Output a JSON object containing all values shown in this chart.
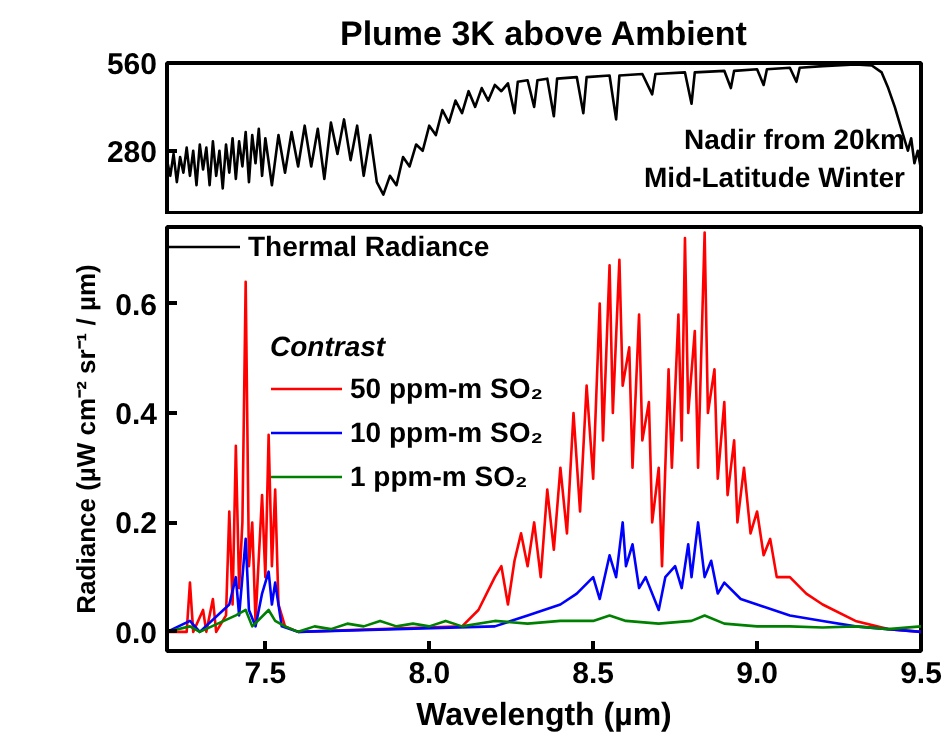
{
  "chart_data": [
    {
      "type": "line",
      "title": "Plume 3K above Ambient",
      "annotations": [
        "Nadir from 20km",
        "Mid-Latitude Winter"
      ],
      "xlim": [
        7.2,
        9.5
      ],
      "ylim": [
        75,
        560
      ],
      "yticks": [
        280,
        560
      ],
      "tick_labels": "y",
      "grid": false,
      "legend": "bottom left",
      "marker": "none",
      "line_style": "solid",
      "series": [
        {
          "name": "Thermal Radiance",
          "color": "#000000",
          "x": [
            7.2,
            7.21,
            7.22,
            7.23,
            7.24,
            7.25,
            7.26,
            7.27,
            7.28,
            7.29,
            7.3,
            7.31,
            7.32,
            7.33,
            7.34,
            7.35,
            7.36,
            7.37,
            7.38,
            7.39,
            7.4,
            7.41,
            7.42,
            7.43,
            7.44,
            7.45,
            7.46,
            7.47,
            7.48,
            7.49,
            7.5,
            7.52,
            7.54,
            7.56,
            7.58,
            7.6,
            7.62,
            7.64,
            7.66,
            7.68,
            7.7,
            7.72,
            7.74,
            7.76,
            7.78,
            7.8,
            7.82,
            7.84,
            7.86,
            7.88,
            7.9,
            7.92,
            7.94,
            7.96,
            7.98,
            8.0,
            8.02,
            8.04,
            8.06,
            8.08,
            8.1,
            8.12,
            8.14,
            8.16,
            8.18,
            8.2,
            8.22,
            8.24,
            8.26,
            8.27,
            8.3,
            8.32,
            8.33,
            8.36,
            8.38,
            8.39,
            8.45,
            8.47,
            8.48,
            8.55,
            8.57,
            8.58,
            8.65,
            8.68,
            8.69,
            8.78,
            8.8,
            8.81,
            8.9,
            8.92,
            8.93,
            9.0,
            9.02,
            9.03,
            9.1,
            9.12,
            9.13,
            9.2,
            9.3,
            9.35,
            9.38,
            9.4,
            9.42,
            9.44,
            9.46,
            9.47,
            9.48,
            9.49,
            9.5
          ],
          "values": [
            250,
            200,
            270,
            180,
            260,
            210,
            290,
            200,
            280,
            170,
            300,
            220,
            290,
            170,
            310,
            200,
            280,
            160,
            300,
            210,
            320,
            190,
            310,
            230,
            340,
            180,
            330,
            240,
            350,
            200,
            320,
            170,
            330,
            210,
            340,
            230,
            360,
            230,
            350,
            190,
            370,
            270,
            380,
            250,
            360,
            200,
            330,
            180,
            140,
            200,
            170,
            260,
            230,
            300,
            280,
            360,
            330,
            410,
            370,
            440,
            400,
            470,
            420,
            480,
            440,
            490,
            470,
            495,
            400,
            500,
            505,
            420,
            505,
            510,
            390,
            510,
            515,
            400,
            515,
            520,
            380,
            520,
            525,
            460,
            525,
            530,
            430,
            530,
            535,
            480,
            535,
            540,
            490,
            540,
            545,
            500,
            545,
            550,
            555,
            552,
            530,
            480,
            420,
            350,
            280,
            320,
            240,
            280,
            220
          ]
        }
      ]
    },
    {
      "type": "line",
      "xlabel": "Wavelength (µm)",
      "ylabel": "Radiance (µW cm⁻² sr⁻¹ / µm)",
      "legend_title": "Contrast",
      "xlim": [
        7.2,
        9.5
      ],
      "xticks": [
        7.5,
        {
          "value": 8,
          "label": "8.0"
        },
        8.5,
        {
          "value": 9,
          "label": "9.0"
        },
        9.5
      ],
      "ylim": [
        -0.035,
        0.74
      ],
      "yticks": [
        {
          "value": 0,
          "label": "0.0"
        },
        0.2,
        0.4,
        0.6
      ],
      "grid": false,
      "legend": "top left",
      "marker": "none",
      "line_style": "solid",
      "series": [
        {
          "name": "50 ppm-m SO₂",
          "color": "#ff0000",
          "x": [
            7.2,
            7.26,
            7.27,
            7.28,
            7.31,
            7.32,
            7.34,
            7.35,
            7.38,
            7.39,
            7.4,
            7.41,
            7.42,
            7.43,
            7.44,
            7.45,
            7.46,
            7.47,
            7.49,
            7.5,
            7.51,
            7.52,
            7.53,
            7.54,
            7.56,
            7.6,
            8.1,
            8.15,
            8.2,
            8.22,
            8.24,
            8.26,
            8.28,
            8.3,
            8.32,
            8.34,
            8.36,
            8.38,
            8.4,
            8.42,
            8.44,
            8.46,
            8.48,
            8.5,
            8.52,
            8.53,
            8.55,
            8.56,
            8.58,
            8.59,
            8.61,
            8.62,
            8.64,
            8.65,
            8.67,
            8.68,
            8.7,
            8.71,
            8.73,
            8.74,
            8.76,
            8.77,
            8.78,
            8.79,
            8.81,
            8.82,
            8.84,
            8.85,
            8.87,
            8.88,
            8.9,
            8.91,
            8.93,
            8.94,
            8.96,
            8.98,
            9.0,
            9.02,
            9.04,
            9.06,
            9.1,
            9.15,
            9.2,
            9.3,
            9.4,
            9.5
          ],
          "values": [
            0,
            0,
            0.09,
            0,
            0.04,
            0,
            0.06,
            0,
            0.03,
            0.22,
            0.05,
            0.34,
            0.08,
            0.2,
            0.64,
            0.12,
            0.2,
            0.02,
            0.25,
            0.1,
            0.36,
            0.12,
            0.26,
            0.05,
            0.01,
            0,
            0.01,
            0.04,
            0.1,
            0.12,
            0.05,
            0.13,
            0.18,
            0.12,
            0.2,
            0.1,
            0.26,
            0.15,
            0.3,
            0.18,
            0.4,
            0.22,
            0.45,
            0.28,
            0.6,
            0.35,
            0.67,
            0.4,
            0.68,
            0.45,
            0.52,
            0.3,
            0.58,
            0.35,
            0.42,
            0.2,
            0.3,
            0.12,
            0.48,
            0.3,
            0.58,
            0.35,
            0.72,
            0.4,
            0.55,
            0.3,
            0.73,
            0.4,
            0.48,
            0.28,
            0.42,
            0.25,
            0.35,
            0.2,
            0.3,
            0.18,
            0.22,
            0.14,
            0.17,
            0.1,
            0.1,
            0.07,
            0.05,
            0.02,
            0.005,
            0
          ]
        },
        {
          "name": "10 ppm-m SO₂",
          "color": "#0000ff",
          "x": [
            7.2,
            7.27,
            7.3,
            7.39,
            7.41,
            7.42,
            7.44,
            7.45,
            7.47,
            7.49,
            7.51,
            7.52,
            7.53,
            7.55,
            7.6,
            8.2,
            8.3,
            8.4,
            8.45,
            8.5,
            8.52,
            8.55,
            8.57,
            8.59,
            8.6,
            8.62,
            8.64,
            8.66,
            8.7,
            8.72,
            8.75,
            8.77,
            8.79,
            8.8,
            8.82,
            8.84,
            8.86,
            8.88,
            8.9,
            8.95,
            9.0,
            9.1,
            9.2,
            9.3,
            9.5
          ],
          "values": [
            0,
            0.02,
            0,
            0.05,
            0.1,
            0.03,
            0.17,
            0.04,
            0.01,
            0.07,
            0.11,
            0.05,
            0.09,
            0.01,
            0,
            0.01,
            0.03,
            0.05,
            0.07,
            0.1,
            0.06,
            0.14,
            0.1,
            0.2,
            0.12,
            0.16,
            0.08,
            0.1,
            0.04,
            0.1,
            0.12,
            0.08,
            0.16,
            0.1,
            0.2,
            0.1,
            0.13,
            0.07,
            0.09,
            0.06,
            0.05,
            0.03,
            0.02,
            0.01,
            0
          ]
        },
        {
          "name": "1 ppm-m SO₂",
          "color": "#008000",
          "x": [
            7.2,
            7.27,
            7.3,
            7.41,
            7.44,
            7.46,
            7.51,
            7.53,
            7.56,
            7.6,
            7.65,
            7.7,
            7.75,
            7.8,
            7.85,
            7.9,
            7.95,
            8.0,
            8.05,
            8.1,
            8.2,
            8.3,
            8.4,
            8.5,
            8.55,
            8.6,
            8.7,
            8.8,
            8.84,
            8.9,
            9.0,
            9.1,
            9.2,
            9.3,
            9.4,
            9.5
          ],
          "values": [
            0,
            0.01,
            0,
            0.03,
            0.04,
            0.01,
            0.04,
            0.02,
            0.01,
            0,
            0.01,
            0.005,
            0.015,
            0.01,
            0.02,
            0.01,
            0.015,
            0.01,
            0.02,
            0.01,
            0.02,
            0.015,
            0.02,
            0.02,
            0.03,
            0.02,
            0.015,
            0.02,
            0.03,
            0.015,
            0.01,
            0.01,
            0.008,
            0.01,
            0.005,
            0.01
          ]
        }
      ]
    }
  ]
}
